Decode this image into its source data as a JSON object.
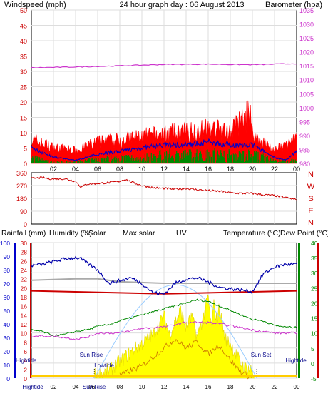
{
  "title": "24 hour graph day : 06 August 2013",
  "colors": {
    "wind": "#ff0000",
    "gust_blue": "#0000cc",
    "wind_green": "#008800",
    "baro": "#cc33cc",
    "dir": "#cc0000",
    "rain_red": "#cc0000",
    "humidity": "#0000aa",
    "maxsolar": "#cc0000",
    "uv": "#cc7700",
    "temp": "#008800",
    "dew": "#cc0000",
    "grey": "#aaaaaa",
    "solar_fill": "#ffff00",
    "sun_curve": "#99ccff"
  },
  "chart_data": [
    {
      "type": "line",
      "name": "wind_baro",
      "left_label": "Windspeed (mph)",
      "right_label": "Barometer (hpa)",
      "left_ticks": [
        "50",
        "45",
        "40",
        "35",
        "30",
        "25",
        "20",
        "15",
        "10",
        "5",
        "0"
      ],
      "right_ticks": [
        "1035",
        "1030",
        "1025",
        "1020",
        "1015",
        "1010",
        "1005",
        "1000",
        "995",
        "990",
        "985",
        "980"
      ],
      "x_ticks": [
        "02",
        "04",
        "06",
        "08",
        "10",
        "12",
        "14",
        "16",
        "18",
        "20",
        "22",
        "00"
      ],
      "ylim_left": [
        0,
        50
      ],
      "ylim_right": [
        980,
        1035
      ],
      "barometer": {
        "x": [
          0,
          4,
          8,
          12,
          16,
          20,
          24
        ],
        "y": [
          1014.3,
          1014.6,
          1015.0,
          1015.5,
          1015.6,
          1015.4,
          1015.8
        ]
      },
      "windspeed_avg": {
        "x": [
          0,
          2,
          4,
          6,
          8,
          10,
          12,
          14,
          16,
          18,
          20,
          22,
          23,
          24
        ],
        "y": [
          5,
          2,
          1,
          3,
          4,
          5,
          6,
          6,
          7,
          6,
          6,
          2,
          1,
          4
        ]
      },
      "windspeed_gust_peak": {
        "x": [
          0,
          2,
          4,
          6,
          8,
          10,
          12,
          14,
          16,
          18,
          19.8,
          20,
          22,
          24
        ],
        "y": [
          9,
          6,
          5,
          8,
          9,
          10,
          11,
          12,
          13,
          12,
          19,
          11,
          5,
          9
        ]
      },
      "windspeed_green": {
        "x": [
          0,
          2,
          4,
          6,
          8,
          10,
          12,
          14,
          16,
          18,
          20,
          22,
          24
        ],
        "y": [
          2,
          0.5,
          0.5,
          1.5,
          2,
          2,
          3,
          3,
          3.5,
          3,
          3,
          1,
          1
        ]
      }
    },
    {
      "type": "line",
      "name": "wind_direction",
      "left_ticks": [
        "360",
        "270",
        "180",
        "90",
        "0"
      ],
      "right_ticks": [
        "N",
        "W",
        "S",
        "E",
        "N"
      ],
      "ylim": [
        0,
        360
      ],
      "direction": {
        "x": [
          0,
          1,
          2,
          3,
          4,
          4.5,
          5,
          6,
          7,
          8,
          8.5,
          9,
          10,
          11,
          12,
          13,
          14,
          15,
          16,
          17,
          18,
          19,
          20,
          21,
          22,
          23,
          24
        ],
        "y": [
          320,
          325,
          315,
          318,
          300,
          258,
          280,
          285,
          290,
          300,
          315,
          295,
          270,
          255,
          250,
          245,
          250,
          240,
          235,
          230,
          220,
          215,
          215,
          205,
          200,
          185,
          170
        ]
      }
    },
    {
      "type": "line",
      "name": "temp_humidity_solar",
      "labels": [
        "Rainfall (mm)",
        "Humidity (%)",
        "Solar",
        "Max solar",
        "UV",
        "Temperature (°C)",
        "Dew Point (°C)"
      ],
      "rain_ticks": [
        "100",
        "90",
        "80",
        "70",
        "60",
        "50",
        "40",
        "30",
        "20",
        "10",
        "0"
      ],
      "humidity_ticks": [
        "30",
        "28",
        "26",
        "24",
        "22",
        "20",
        "18",
        "16",
        "14",
        "12",
        "10",
        "8",
        "6",
        "4",
        "2",
        "0"
      ],
      "temp_ticks": [
        "40",
        "35",
        "30",
        "25",
        "20",
        "15",
        "10",
        "5",
        "0",
        "-5"
      ],
      "temp_ticks_right": [
        "40",
        "35",
        "30",
        "25",
        "20",
        "15",
        "10",
        "5",
        "0",
        "-5"
      ],
      "ylim_temp": [
        -5,
        40
      ],
      "x_ticks": [
        "Hightide",
        "02",
        "04",
        "06",
        "Sun Rise",
        "08",
        "10",
        "12",
        "14",
        "16",
        "18",
        "20",
        "22",
        "00"
      ],
      "annotations": [
        "Hightide",
        "Sun Rise",
        "Lowtide",
        "Sun Set",
        "Hightide"
      ],
      "humidity": {
        "x": [
          0,
          1,
          2,
          3,
          4,
          4.5,
          5,
          6,
          7,
          8,
          9,
          10,
          11,
          12,
          13,
          14,
          15,
          16,
          17,
          18,
          19,
          20,
          21,
          22,
          23,
          24
        ],
        "y": [
          83,
          84,
          86,
          88,
          89,
          88,
          85,
          80,
          70,
          72,
          74,
          70,
          63,
          62,
          70,
          73,
          74,
          71,
          67,
          66,
          65,
          64,
          77,
          82,
          84,
          84
        ]
      },
      "temperature": {
        "x": [
          0,
          1,
          2,
          3,
          4,
          5,
          6,
          7,
          8,
          9,
          10,
          11,
          12,
          13,
          14,
          15,
          16,
          17,
          18,
          19,
          20,
          21,
          22,
          23,
          24
        ],
        "y": [
          11,
          10.5,
          9,
          9.5,
          10.5,
          11,
          12.2,
          12.8,
          14,
          15,
          16,
          17,
          18,
          19,
          20,
          21,
          20.5,
          19,
          17.5,
          16,
          14.5,
          14,
          12.5,
          12,
          11.8
        ]
      },
      "dewpoint": {
        "x": [
          0,
          2,
          4,
          5,
          6,
          8,
          10,
          12,
          14,
          16,
          18,
          20,
          22,
          24
        ],
        "y": [
          9,
          9,
          8,
          8.5,
          10,
          10,
          11.5,
          12,
          13.5,
          13.5,
          12.5,
          11,
          10,
          10
        ]
      },
      "red_line": {
        "x": [
          0,
          12,
          24
        ],
        "y": [
          24,
          23,
          24
        ]
      },
      "grey_line": {
        "x": [
          0,
          4,
          6,
          8,
          12,
          24
        ],
        "y": [
          27.5,
          28,
          28,
          27,
          26.5,
          26.5
        ]
      },
      "solar": {
        "x": [
          5.7,
          7,
          8,
          9,
          10,
          11,
          12,
          12.5,
          13,
          13.5,
          14,
          14.5,
          15,
          15.5,
          16,
          16.3,
          16.5,
          16.8,
          17,
          17.5,
          18,
          19,
          19.5,
          20,
          20.2
        ],
        "y": [
          -4.5,
          -3,
          0,
          3,
          6,
          9,
          15,
          9,
          13,
          17,
          11,
          15,
          8,
          14,
          21,
          11,
          19,
          13,
          18,
          8,
          6,
          -1,
          -2,
          -3,
          -5
        ]
      },
      "uv": {
        "x": [
          8,
          10,
          11,
          12,
          13,
          14,
          15,
          16,
          17,
          18,
          19,
          20
        ],
        "y": [
          -4,
          -1,
          2,
          5,
          8,
          5,
          7,
          3,
          6,
          1,
          -3,
          -5
        ]
      },
      "sun_curve": {
        "x": [
          5.7,
          8,
          10,
          12,
          13.4,
          15,
          17,
          19,
          20.4
        ],
        "y": [
          -5,
          8,
          18,
          24,
          26,
          24,
          18,
          8,
          -5
        ]
      }
    }
  ]
}
